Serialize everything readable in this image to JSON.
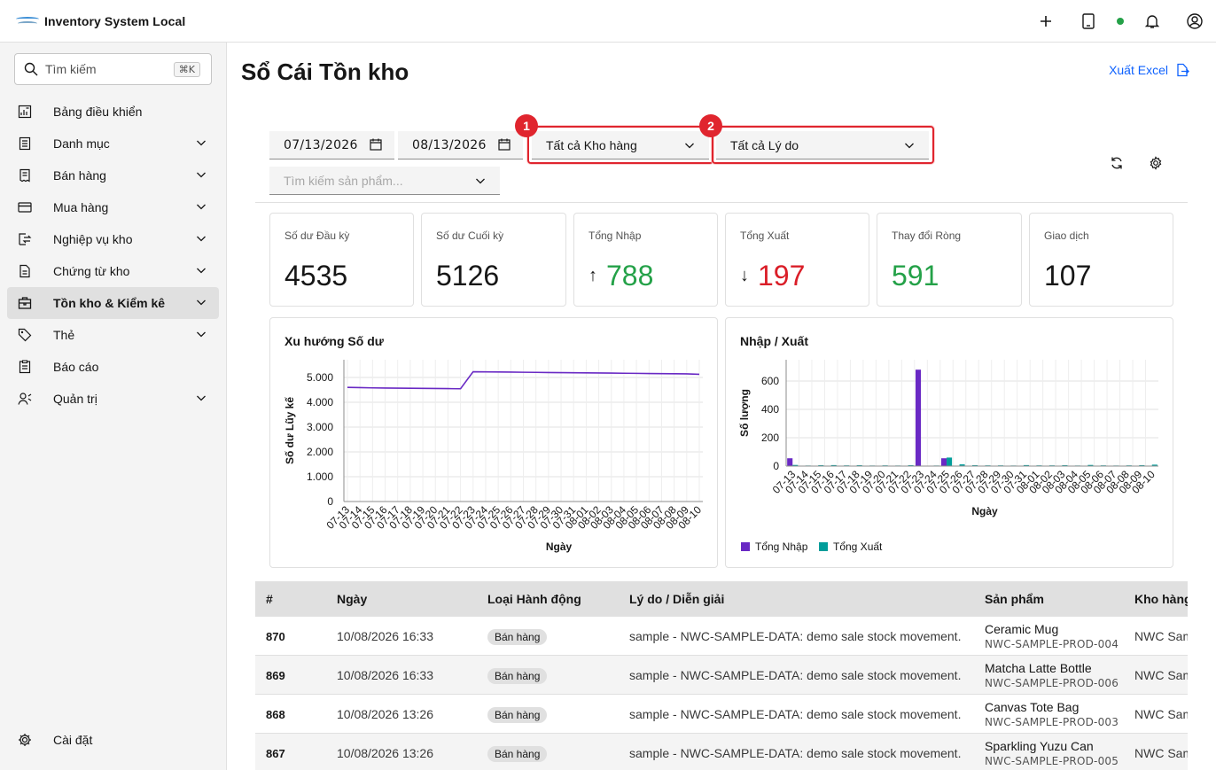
{
  "app": {
    "title": "Inventory System Local"
  },
  "sidebar": {
    "search_placeholder": "Tìm kiếm",
    "search_shortcut": "⌘K",
    "items": [
      {
        "label": "Bảng điều khiển"
      },
      {
        "label": "Danh mục"
      },
      {
        "label": "Bán hàng"
      },
      {
        "label": "Mua hàng"
      },
      {
        "label": "Nghiệp vụ kho"
      },
      {
        "label": "Chứng từ kho"
      },
      {
        "label": "Tồn kho & Kiểm kê"
      },
      {
        "label": "Thẻ"
      },
      {
        "label": "Báo cáo"
      },
      {
        "label": "Quản trị"
      }
    ],
    "settings_label": "Cài đặt"
  },
  "page": {
    "title": "Sổ Cái Tồn kho",
    "export_label": "Xuất Excel"
  },
  "filters": {
    "date_from": "07/13/2026",
    "date_to": "08/13/2026",
    "warehouse": "Tất cả Kho hàng",
    "reason": "Tất cả Lý do",
    "product_placeholder": "Tìm kiếm sản phẩm...",
    "badge_1": "1",
    "badge_2": "2"
  },
  "stats": [
    {
      "label": "Số dư Đầu kỳ",
      "value": "4535"
    },
    {
      "label": "Số dư Cuối kỳ",
      "value": "5126"
    },
    {
      "label": "Tổng Nhập",
      "value": "788",
      "arrow": "↑"
    },
    {
      "label": "Tổng Xuất",
      "value": "197",
      "arrow": "↓"
    },
    {
      "label": "Thay đổi Ròng",
      "value": "591"
    },
    {
      "label": "Giao dịch",
      "value": "107"
    }
  ],
  "colors": {
    "accent": "#0f62fe",
    "nhap": "#6929c4",
    "xuat": "#1192e8",
    "xuat_teal": "#009d9a",
    "green": "#24a148",
    "red": "#da1e28",
    "highlight": "#e0252e"
  },
  "chart_data": [
    {
      "type": "line",
      "title": "Xu hướng Số dư",
      "xlabel": "Ngày",
      "ylabel": "Số dư Lũy kế",
      "ylim": [
        0,
        5000
      ],
      "yticks": [
        "0",
        "1.000",
        "2.000",
        "3.000",
        "4.000",
        "5.000"
      ],
      "x": [
        "07-13",
        "07-14",
        "07-15",
        "07-16",
        "07-17",
        "07-18",
        "07-19",
        "07-20",
        "07-21",
        "07-22",
        "07-23",
        "07-24",
        "07-25",
        "07-26",
        "07-27",
        "07-28",
        "07-29",
        "07-30",
        "07-31",
        "08-01",
        "08-02",
        "08-03",
        "08-04",
        "08-05",
        "08-06",
        "08-07",
        "08-08",
        "08-09",
        "08-10"
      ],
      "series": [
        {
          "values": [
            4600,
            4590,
            4580,
            4575,
            4570,
            4565,
            4560,
            4555,
            4550,
            4545,
            5230,
            5225,
            5220,
            5215,
            5210,
            5205,
            5200,
            5195,
            5190,
            5185,
            5180,
            5175,
            5170,
            5165,
            5160,
            5155,
            5150,
            5145,
            5126
          ]
        }
      ],
      "grid": true
    },
    {
      "type": "bar",
      "title": "Nhập / Xuất",
      "xlabel": "Ngày",
      "ylabel": "Số lượng",
      "ylim": [
        0,
        750
      ],
      "yticks": [
        "0",
        "200",
        "400",
        "600"
      ],
      "categories": [
        "07-13",
        "07-14",
        "07-15",
        "07-16",
        "07-17",
        "07-18",
        "07-19",
        "07-20",
        "07-21",
        "07-22",
        "07-23",
        "07-24",
        "07-25",
        "07-26",
        "07-27",
        "07-28",
        "07-29",
        "07-30",
        "07-31",
        "08-01",
        "08-02",
        "08-03",
        "08-04",
        "08-05",
        "08-06",
        "08-07",
        "08-08",
        "08-09",
        "08-10"
      ],
      "series": [
        {
          "name": "Tổng Nhập",
          "values": [
            55,
            0,
            0,
            0,
            0,
            0,
            0,
            0,
            0,
            0,
            680,
            0,
            55,
            0,
            0,
            0,
            0,
            0,
            0,
            0,
            0,
            0,
            0,
            0,
            0,
            0,
            0,
            0,
            0
          ]
        },
        {
          "name": "Tổng Xuất",
          "values": [
            8,
            4,
            6,
            7,
            5,
            6,
            4,
            5,
            4,
            6,
            0,
            4,
            60,
            12,
            6,
            5,
            5,
            4,
            7,
            5,
            5,
            6,
            4,
            8,
            5,
            4,
            5,
            6,
            10
          ]
        }
      ],
      "legend": "bottom-left",
      "grid": true
    }
  ],
  "table": {
    "headers": [
      "#",
      "Ngày",
      "Loại Hành động",
      "Lý do / Diễn giải",
      "Sản phẩm",
      "Kho hàng"
    ],
    "rows": [
      {
        "id": "870",
        "date": "10/08/2026 16:33",
        "action": "Bán hàng",
        "reason": "sample - NWC-SAMPLE-DATA: demo sale stock movement.",
        "product": "Ceramic Mug",
        "sku": "NWC-SAMPLE-PROD-004",
        "warehouse": "NWC Sam"
      },
      {
        "id": "869",
        "date": "10/08/2026 16:33",
        "action": "Bán hàng",
        "reason": "sample - NWC-SAMPLE-DATA: demo sale stock movement.",
        "product": "Matcha Latte Bottle",
        "sku": "NWC-SAMPLE-PROD-006",
        "warehouse": "NWC Sam"
      },
      {
        "id": "868",
        "date": "10/08/2026 13:26",
        "action": "Bán hàng",
        "reason": "sample - NWC-SAMPLE-DATA: demo sale stock movement.",
        "product": "Canvas Tote Bag",
        "sku": "NWC-SAMPLE-PROD-003",
        "warehouse": "NWC Sam"
      },
      {
        "id": "867",
        "date": "10/08/2026 13:26",
        "action": "Bán hàng",
        "reason": "sample - NWC-SAMPLE-DATA: demo sale stock movement.",
        "product": "Sparkling Yuzu Can",
        "sku": "NWC-SAMPLE-PROD-005",
        "warehouse": "NWC Sam"
      }
    ]
  }
}
